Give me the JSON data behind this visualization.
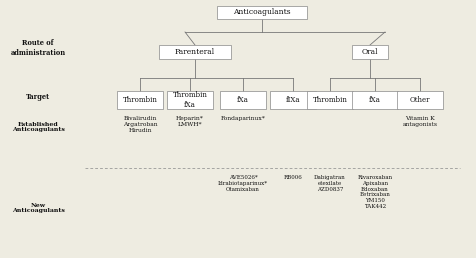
{
  "bg_color": "#eeece1",
  "box_color": "#ffffff",
  "box_edge": "#888888",
  "text_color": "#111111",
  "title": "Anticoagulants",
  "par_label": "Parenteral",
  "oral_label": "Oral",
  "route_side_label": "Route of\nadministration",
  "target_side_label": "Target",
  "established_side_label": "Established\nAnticoagulants",
  "new_side_label": "New\nAnticoagulants",
  "target_par": [
    "Thrombin",
    "Thrombin\nfXa",
    "fXa",
    "fIXa"
  ],
  "target_oral": [
    "Thrombin",
    "fXa",
    "Other"
  ],
  "est_thrombin_p": "Bivalirudin\nArgatroban\nHirudin",
  "est_thrombinfxa_p": "Heparin*\nLMWH*",
  "est_fxa_p": "Fondaparinux*",
  "est_other_o": "Vitamin K\nantagonists",
  "new_fxa_p": "AVE5026*\nIdrabiotaparinux*\nOtamixaban",
  "new_fixa_p": "RB006",
  "new_thrombin_o": "Dabigatran\netexilate\nAZD0837",
  "new_fxa_o": "Rivaroxaban\nApixaban\nEdoxaban\nBetrixaban\nYM150\nTAK442"
}
